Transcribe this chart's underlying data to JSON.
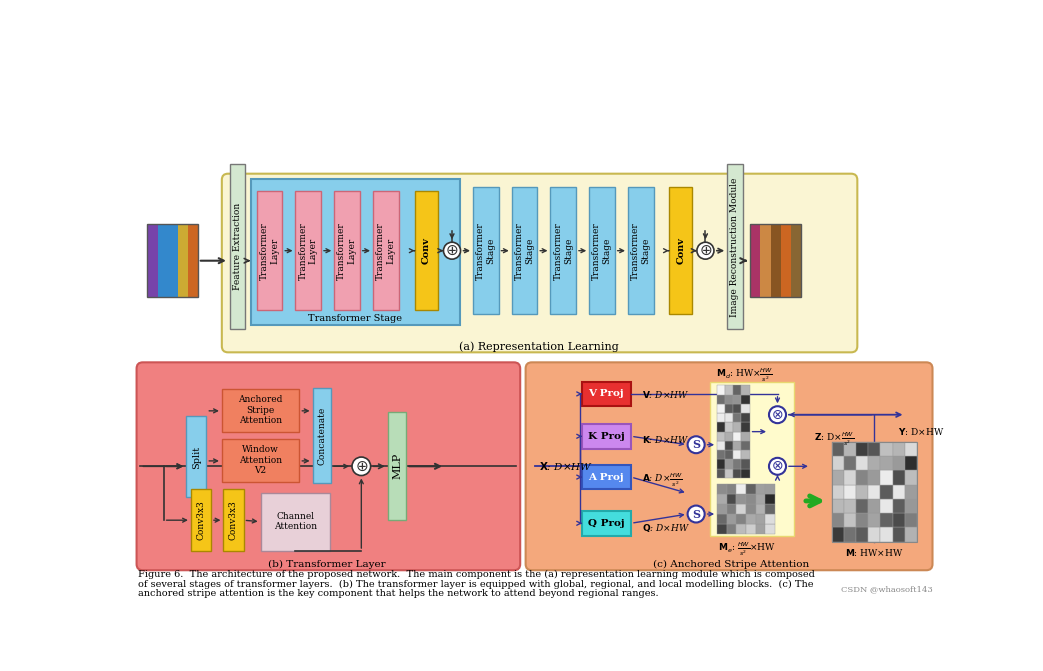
{
  "fig_width": 10.43,
  "fig_height": 6.71,
  "bg_color": "#ffffff",
  "top_panel_bg": "#faf5d3",
  "bottom_left_bg": "#f08080",
  "bottom_right_bg": "#f4a87c",
  "blue_block": "#87ceeb",
  "pink_block": "#f0a0b0",
  "gold_block": "#f5c518",
  "green_block": "#b8ddb8",
  "red_proj": "#e83030",
  "purple_proj": "#cc88ee",
  "blue_proj": "#5588ee",
  "cyan_proj": "#44dddd",
  "channel_attn_bg": "#e8d0d8",
  "arrow_dark": "#333333",
  "arrow_blue": "#333399",
  "caption_line1": "Figure 6.  The architecture of the proposed network.  The main component is the (a) representation learning module which is composed",
  "caption_line2": "of several stages of transformer layers.  (b) The transformer layer is equipped with global, regional, and local modelling blocks.  (c) The",
  "caption_line3": "anchored stripe attention is the key component that helps the network to attend beyond regional ranges.",
  "watermark": "CSDN @whaosoft143"
}
